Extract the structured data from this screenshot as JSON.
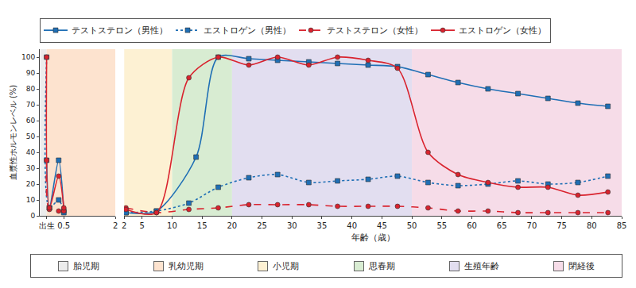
{
  "chart_data": {
    "type": "line",
    "y_label": "血漿性ホルモンレベル (%)",
    "x_label": "年齢（歳）",
    "ylim": [
      0,
      105
    ],
    "yticks": [
      0,
      10,
      20,
      30,
      40,
      50,
      60,
      70,
      80,
      90,
      100
    ],
    "grid": false,
    "legend": "top",
    "panels": [
      {
        "xlim": [
          -0.2,
          2
        ],
        "xticks": [
          {
            "value": 0,
            "label": "出生"
          },
          0.5,
          2
        ]
      },
      {
        "xlim": [
          2,
          85
        ],
        "xticks": [
          2,
          5,
          10,
          15,
          20,
          25,
          30,
          35,
          40,
          45,
          50,
          55,
          60,
          65,
          70,
          75,
          80,
          85
        ]
      }
    ],
    "series": [
      {
        "name": "テストステロン（男性）",
        "color": "#1f6fb5",
        "marker": "square",
        "line_style": "solid",
        "x": [
          0,
          0.08,
          0.35,
          0.5,
          2.3,
          7.4,
          14,
          17.7,
          22.8,
          27.6,
          32.8,
          37.6,
          42.7,
          47.6,
          52.7,
          57.7,
          62.7,
          67.7,
          72.7,
          77.7,
          82.7
        ],
        "values": [
          35,
          5,
          35,
          3,
          2,
          3,
          37,
          100,
          99,
          98,
          97,
          96,
          95,
          94,
          89,
          84,
          80,
          77,
          74,
          71,
          69
        ]
      },
      {
        "name": "エストロゲン（男性）",
        "color": "#1f6fb5",
        "marker": "square",
        "line_style": "dot",
        "x": [
          0,
          0.08,
          0.35,
          0.5,
          2.3,
          7.4,
          12.8,
          17.7,
          22.8,
          27.6,
          32.8,
          37.6,
          42.7,
          47.6,
          52.7,
          57.7,
          62.7,
          67.7,
          72.7,
          77.7,
          82.7
        ],
        "values": [
          100,
          5,
          10,
          2,
          2,
          3,
          8,
          18,
          24,
          26,
          21,
          22,
          23,
          25,
          21,
          19,
          20,
          22,
          20,
          21,
          25
        ]
      },
      {
        "name": "テストステロン（女性）",
        "color": "#d9232e",
        "marker": "circle",
        "line_style": "dash",
        "x": [
          0,
          0.08,
          0.35,
          0.5,
          2.3,
          7.4,
          12.8,
          17.7,
          22.8,
          27.6,
          32.8,
          37.6,
          42.7,
          47.6,
          52.7,
          57.7,
          62.7,
          67.7,
          72.7,
          77.7,
          82.7
        ],
        "values": [
          35,
          4,
          3,
          3,
          5,
          2,
          4,
          5,
          7,
          7,
          7,
          6,
          6,
          6,
          5,
          3,
          3,
          2,
          2,
          2,
          2
        ]
      },
      {
        "name": "エストロゲン（女性）",
        "color": "#d9232e",
        "marker": "circle",
        "line_style": "solid",
        "x": [
          0,
          0.08,
          0.35,
          0.5,
          2.3,
          7.4,
          12.8,
          17.7,
          22.8,
          27.6,
          32.8,
          37.6,
          42.7,
          47.6,
          52.7,
          57.7,
          62.7,
          67.7,
          72.7,
          77.7,
          82.7
        ],
        "values": [
          100,
          5,
          25,
          5,
          4,
          2,
          87,
          100,
          95,
          100,
          95,
          100,
          98,
          93,
          40,
          26,
          21,
          18,
          18,
          13,
          15
        ]
      }
    ],
    "periods": [
      {
        "name": "胎児期",
        "color": "#ececec",
        "start": -0.2,
        "end": 0
      },
      {
        "name": "乳幼児期",
        "color": "#fde3cf",
        "start": 0,
        "end": 2
      },
      {
        "name": "小児期",
        "color": "#fdf1d3",
        "start": 2,
        "end": 10
      },
      {
        "name": "思春期",
        "color": "#d8ecd2",
        "start": 10,
        "end": 20
      },
      {
        "name": "生殖年齢",
        "color": "#e2def0",
        "start": 20,
        "end": 50
      },
      {
        "name": "閉経後",
        "color": "#f6dce8",
        "start": 50,
        "end": 85
      }
    ]
  }
}
